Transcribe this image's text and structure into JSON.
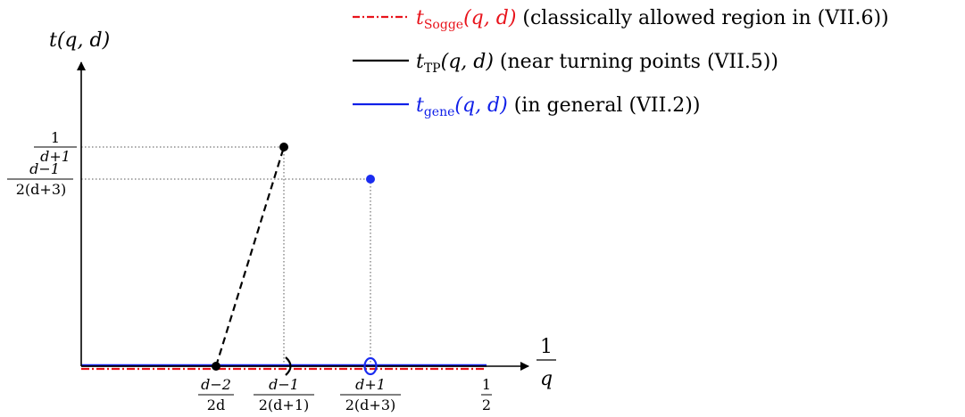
{
  "colors": {
    "axis": "#000000",
    "sogge": "#e8141c",
    "tp": "#000000",
    "gene": "#1020e8",
    "gene_point": "#1a2cf0",
    "guide": "#555555"
  },
  "legend": [
    {
      "style": "dashdot",
      "color": "#e8141c",
      "func_t": "t",
      "func_sub": "Sogge",
      "func_args": "(q, d)",
      "desc": " (classically allowed region in (VII.6))"
    },
    {
      "style": "solid",
      "color": "#000000",
      "func_t": "t",
      "func_sub": "TP",
      "func_args": "(q, d)",
      "desc": " (near turning points (VII.5))"
    },
    {
      "style": "solid",
      "color": "#1020e8",
      "func_t": "t",
      "func_sub": "gene",
      "func_args": "(q, d)",
      "desc": " (in general (VII.2))"
    }
  ],
  "axes": {
    "y_label": "t(q, d)",
    "x_label_num": "1",
    "x_label_den": "q"
  },
  "y_ticks": [
    {
      "num": "1",
      "den": "d+1"
    },
    {
      "num": "d−1",
      "den": "2(d+3)"
    }
  ],
  "x_ticks": [
    {
      "num": "d−2",
      "den": "2d"
    },
    {
      "num": "d−1",
      "den": "2(d+1)"
    },
    {
      "num": "d+1",
      "den": "2(d+3)"
    },
    {
      "num": "1",
      "den": "2"
    }
  ]
}
